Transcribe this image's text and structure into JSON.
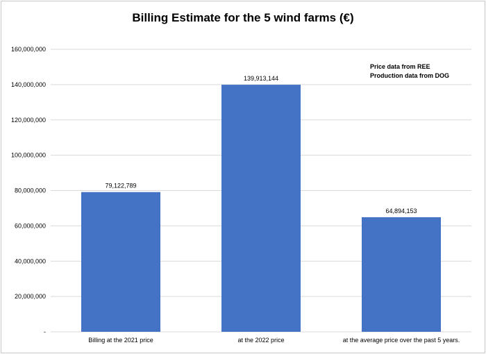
{
  "chart_data": {
    "type": "bar",
    "title": "Billing Estimate for the 5 wind farms (€)",
    "categories": [
      "Billing at the 2021 price",
      "at the 2022 price",
      "at the average price over the past 5 years."
    ],
    "values": [
      79122789,
      139913144,
      64894153
    ],
    "value_labels": [
      "79,122,789",
      "139,913,144",
      "64,894,153"
    ],
    "ylim": [
      0,
      160000000
    ],
    "y_ticks": [
      0,
      20000000,
      40000000,
      60000000,
      80000000,
      100000000,
      120000000,
      140000000,
      160000000
    ],
    "y_tick_labels": [
      "-",
      "20,000,000",
      "40,000,000",
      "60,000,000",
      "80,000,000",
      "100,000,000",
      "120,000,000",
      "140,000,000",
      "160,000,000"
    ],
    "xlabel": "",
    "ylabel": "",
    "grid": true,
    "legend": "none",
    "bar_color": "#4472C4",
    "annotations": [
      "Price data from REE",
      "Production data from  DOG"
    ]
  }
}
